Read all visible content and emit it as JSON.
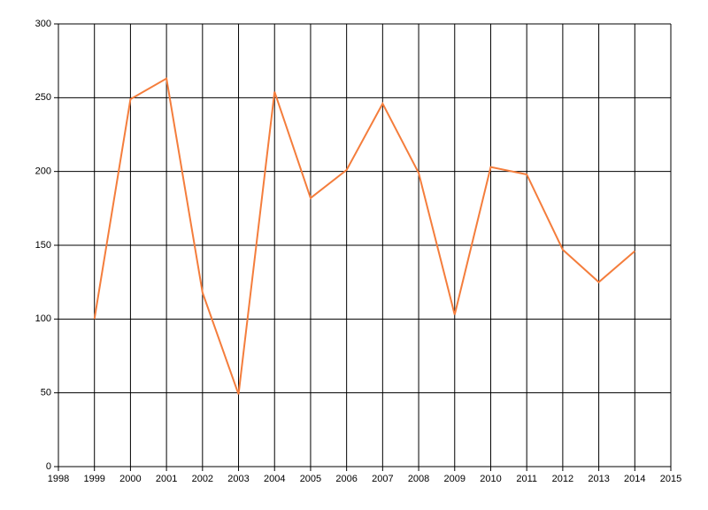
{
  "chart_data": {
    "type": "line",
    "x": [
      1999,
      2000,
      2001,
      2002,
      2003,
      2004,
      2005,
      2006,
      2007,
      2008,
      2009,
      2010,
      2011,
      2012,
      2013,
      2014
    ],
    "series": [
      {
        "color": "#f47d3c",
        "values": [
          100,
          249,
          263,
          118,
          49,
          254,
          182,
          201,
          246,
          199,
          103,
          203,
          198,
          147,
          125,
          146
        ]
      }
    ],
    "xlim": [
      1998,
      2015
    ],
    "xticks": [
      1998,
      1999,
      2000,
      2001,
      2002,
      2003,
      2004,
      2005,
      2006,
      2007,
      2008,
      2009,
      2010,
      2011,
      2012,
      2013,
      2014,
      2015
    ],
    "ylim": [
      0,
      300
    ],
    "yticks": [
      0,
      50,
      100,
      150,
      200,
      250,
      300
    ],
    "grid": true
  }
}
